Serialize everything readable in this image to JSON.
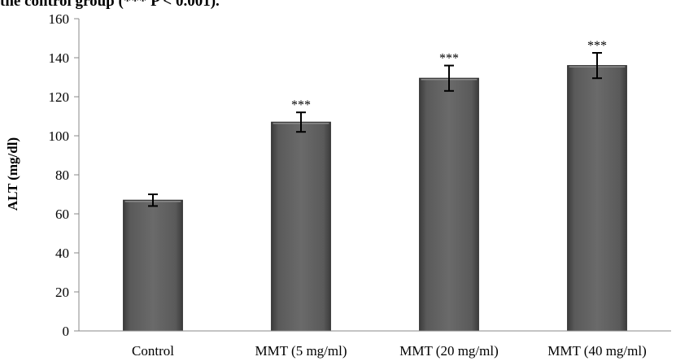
{
  "caption": "the control group (*** P < 0.001).",
  "chart_data": {
    "type": "bar",
    "categories": [
      "Control",
      "MMT (5 mg/ml)",
      "MMT (20 mg/ml)",
      "MMT (40 mg/ml)"
    ],
    "values": [
      67,
      107,
      129.5,
      136
    ],
    "errors": [
      3,
      5,
      6.5,
      6.5
    ],
    "annotations": [
      "",
      "***",
      "***",
      "***"
    ],
    "xlabel": "",
    "ylabel": "ALT (mg/dl)",
    "ylim": [
      0,
      160
    ],
    "yticks": [
      0,
      20,
      40,
      60,
      80,
      100,
      120,
      140,
      160
    ],
    "bar_color": "#5a5a5a",
    "grid": false,
    "legend": "none"
  }
}
